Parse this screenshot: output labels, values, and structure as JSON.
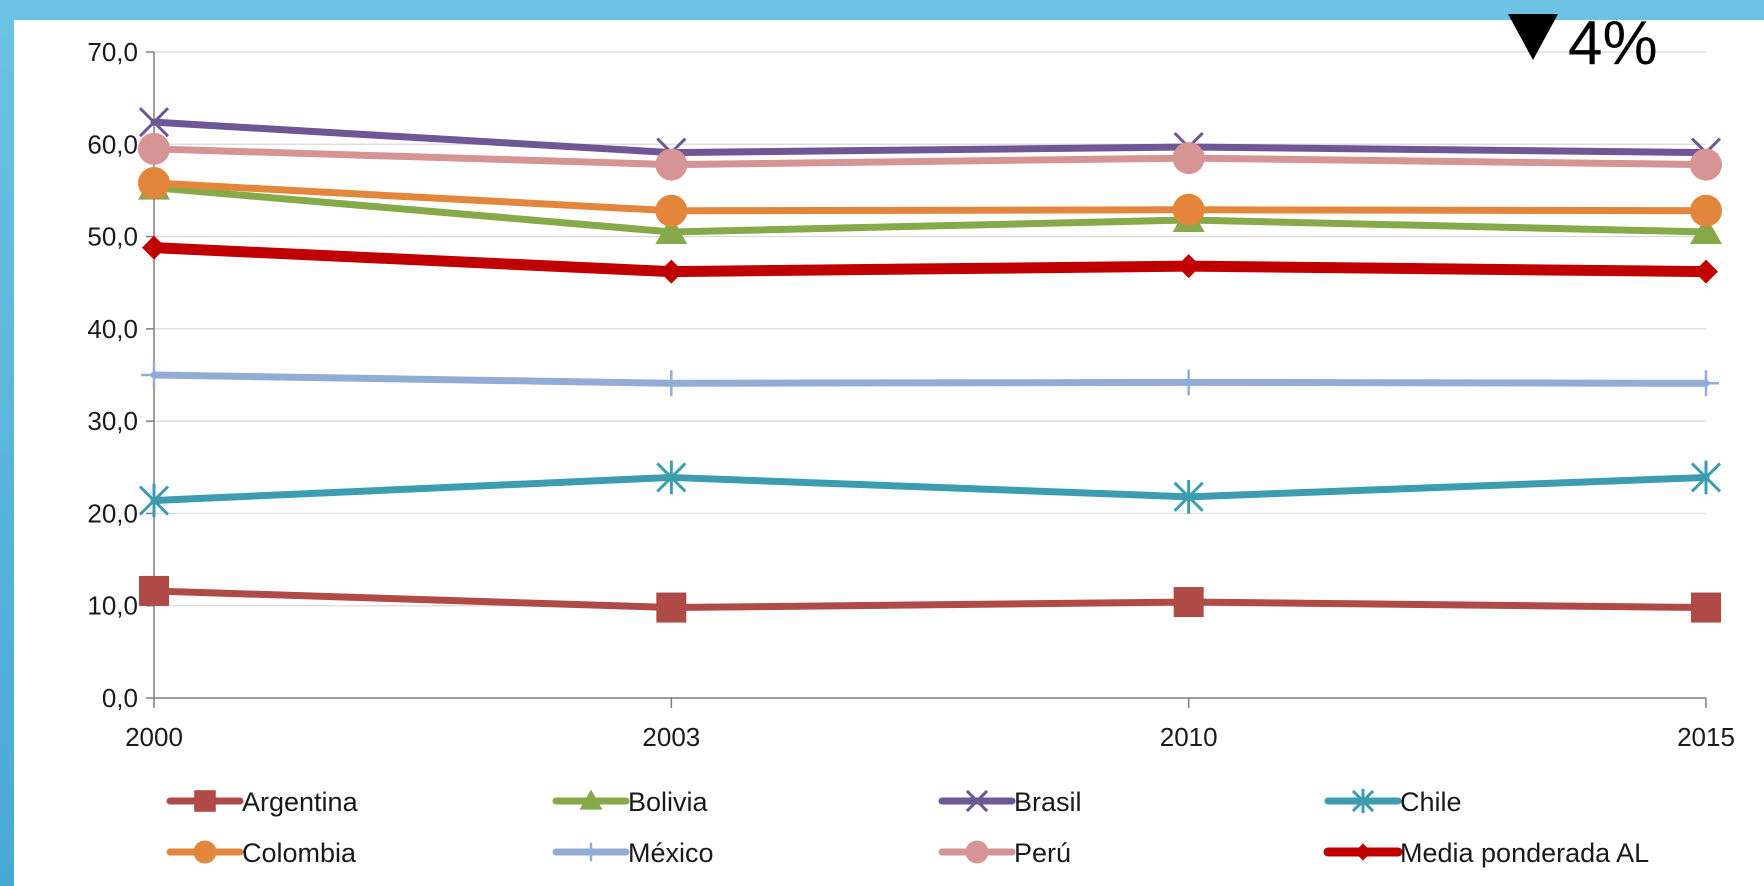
{
  "badge": {
    "arrow": "down",
    "text": "4%"
  },
  "chart_data": {
    "type": "line",
    "categories": [
      "2000",
      "2003",
      "2010",
      "2015"
    ],
    "ylim": [
      0,
      70
    ],
    "yticks": [
      "0,0",
      "10,0",
      "20,0",
      "30,0",
      "40,0",
      "50,0",
      "60,0",
      "70,0"
    ],
    "ytick_values": [
      0,
      10,
      20,
      30,
      40,
      50,
      60,
      70
    ],
    "grid": true,
    "legend_placement": "bottom",
    "series": [
      {
        "name": "Argentina",
        "values": [
          11.6,
          9.8,
          10.4,
          9.8
        ],
        "color": "#b04a46",
        "marker": "square"
      },
      {
        "name": "Bolivia",
        "values": [
          55.3,
          50.5,
          51.8,
          50.5
        ],
        "color": "#86aa4a",
        "marker": "triangle"
      },
      {
        "name": "Brasil",
        "values": [
          62.4,
          59.1,
          59.7,
          59.1
        ],
        "color": "#6f5796",
        "marker": "x"
      },
      {
        "name": "Chile",
        "values": [
          21.4,
          23.9,
          21.8,
          23.9
        ],
        "color": "#3c9db0",
        "marker": "asterisk"
      },
      {
        "name": "Colombia",
        "values": [
          55.8,
          52.8,
          52.9,
          52.8
        ],
        "color": "#e3853a",
        "marker": "circle"
      },
      {
        "name": "México",
        "values": [
          35.0,
          34.1,
          34.2,
          34.1
        ],
        "color": "#93acd5",
        "marker": "plus"
      },
      {
        "name": "Perú",
        "values": [
          59.5,
          57.8,
          58.5,
          57.8
        ],
        "color": "#d69494",
        "marker": "circle"
      },
      {
        "name": "Media ponderada AL",
        "values": [
          48.8,
          46.2,
          46.8,
          46.2
        ],
        "color": "#c00000",
        "marker": "diamond"
      }
    ]
  }
}
